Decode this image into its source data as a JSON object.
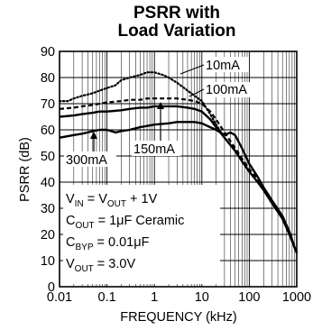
{
  "chart_data": {
    "type": "line",
    "title_line1": "PSRR with",
    "title_line2": "Load Variation",
    "xlabel": "FREQUENCY (kHz)",
    "ylabel": "PSRR (dB)",
    "x_scale": "log",
    "xlim": [
      0.01,
      1000
    ],
    "ylim": [
      0,
      90
    ],
    "x_ticks": [
      0.01,
      0.1,
      1,
      10,
      100,
      1000
    ],
    "x_tick_labels": [
      "0.01",
      "0.1",
      "1",
      "10",
      "100",
      "1000"
    ],
    "y_ticks": [
      0,
      10,
      20,
      30,
      40,
      50,
      60,
      70,
      80,
      90
    ],
    "y_tick_labels": [
      "0",
      "10",
      "20",
      "30",
      "40",
      "50",
      "60",
      "70",
      "80",
      "90"
    ],
    "grid": true,
    "series": [
      {
        "name": "10mA",
        "style": "dotted",
        "x": [
          0.01,
          0.015,
          0.02,
          0.03,
          0.05,
          0.07,
          0.1,
          0.15,
          0.2,
          0.3,
          0.5,
          0.7,
          1,
          1.5,
          2,
          3,
          5,
          7,
          10,
          15,
          20,
          30,
          50,
          70,
          100,
          150,
          200,
          300,
          500,
          700,
          900,
          1000
        ],
        "y": [
          71,
          71,
          72,
          73,
          74,
          75,
          76,
          77,
          79,
          80,
          81,
          82,
          82,
          81,
          80,
          78,
          75,
          73,
          71,
          66,
          62,
          57,
          52,
          48,
          44,
          40,
          37,
          32,
          26,
          20,
          15,
          13
        ]
      },
      {
        "name": "100mA",
        "style": "dashed",
        "x": [
          0.01,
          0.02,
          0.03,
          0.05,
          0.07,
          0.1,
          0.2,
          0.3,
          0.5,
          0.7,
          1,
          2,
          3,
          5,
          7,
          10,
          15,
          20,
          30,
          50,
          70,
          100,
          150,
          200,
          300,
          500,
          700,
          900,
          1000
        ],
        "y": [
          68,
          68.5,
          69,
          69.5,
          70,
          70.5,
          71,
          71.5,
          71.5,
          72,
          72,
          72,
          72,
          71.5,
          71,
          70,
          67,
          64,
          59,
          53,
          49,
          45,
          41,
          38,
          33,
          27,
          21,
          15,
          13
        ]
      },
      {
        "name": "150mA",
        "style": "solid",
        "x": [
          0.01,
          0.02,
          0.03,
          0.05,
          0.07,
          0.1,
          0.2,
          0.3,
          0.5,
          0.7,
          1,
          2,
          3,
          5,
          7,
          10,
          15,
          20,
          30,
          50,
          70,
          100,
          150,
          200,
          300,
          500,
          700,
          900,
          1000
        ],
        "y": [
          65,
          65.5,
          66,
          66.5,
          67,
          67,
          67.5,
          68,
          68.5,
          68.5,
          69,
          69,
          69,
          68.5,
          68,
          67,
          64,
          61,
          57,
          52,
          48,
          44,
          40,
          37,
          32,
          26,
          20,
          15,
          13
        ]
      },
      {
        "name": "300mA",
        "style": "solid",
        "x": [
          0.01,
          0.02,
          0.03,
          0.05,
          0.07,
          0.1,
          0.15,
          0.2,
          0.3,
          0.5,
          0.7,
          1,
          2,
          3,
          5,
          7,
          10,
          15,
          20,
          30,
          40,
          50,
          70,
          100,
          150,
          200,
          300,
          500,
          700,
          900,
          1000
        ],
        "y": [
          57,
          58,
          58.5,
          59.5,
          60,
          60,
          59,
          59.5,
          60,
          61,
          61.5,
          62,
          62.5,
          63,
          63,
          63,
          62.5,
          61,
          60,
          58,
          59,
          58,
          53,
          47,
          42,
          38,
          33,
          27,
          21,
          15,
          13
        ]
      }
    ],
    "annotations": [
      {
        "text": "10mA",
        "points_to": "10mA"
      },
      {
        "text": "100mA",
        "points_to": "100mA"
      },
      {
        "text": "150mA",
        "points_to": "150mA"
      },
      {
        "text": "300mA",
        "points_to": "300mA"
      }
    ],
    "conditions": [
      {
        "a": "V",
        "a_sub": "IN",
        "b": " = V",
        "b_sub": "OUT",
        "c": " + 1V"
      },
      {
        "a": "C",
        "a_sub": "OUT",
        "b": " = 1μF Ceramic",
        "b_sub": "",
        "c": ""
      },
      {
        "a": "C",
        "a_sub": "BYP",
        "b": " = 0.01μF",
        "b_sub": "",
        "c": ""
      },
      {
        "a": "V",
        "a_sub": "OUT",
        "b": " = 3.0V",
        "b_sub": "",
        "c": ""
      }
    ]
  }
}
